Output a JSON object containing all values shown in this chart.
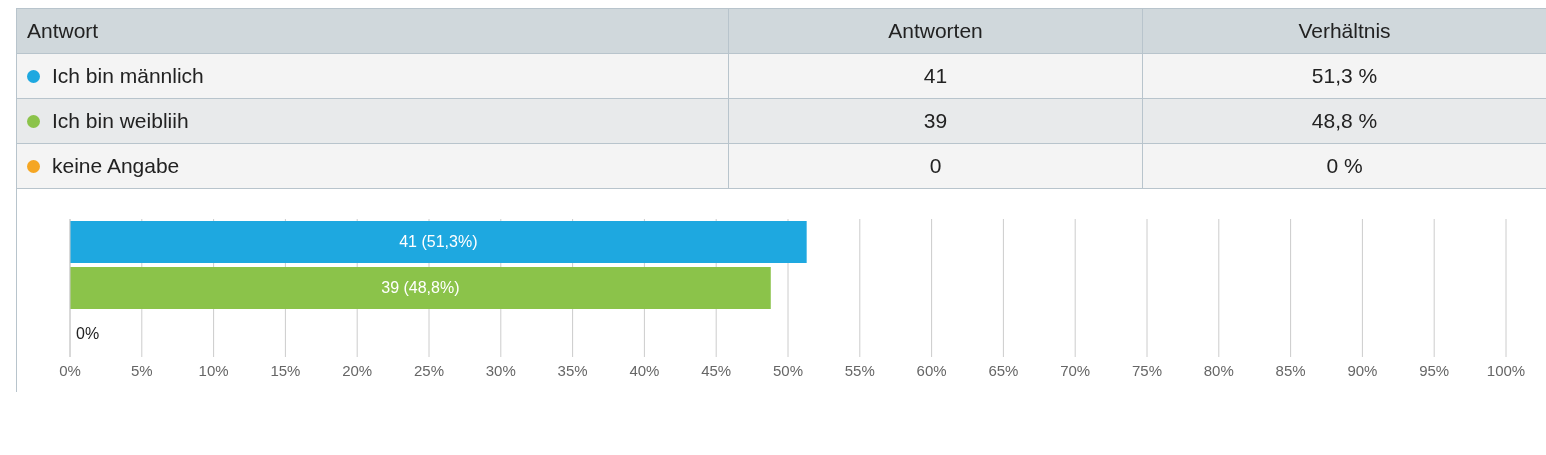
{
  "chart_data": {
    "type": "bar",
    "orientation": "horizontal",
    "categories": [
      null,
      null,
      null
    ],
    "values": [
      51.3,
      48.8,
      0
    ],
    "colors": [
      "#1ea8e0",
      "#8bc34a",
      "#f5a623"
    ],
    "value_labels": [
      "41 (51,3%)",
      "39 (48,8%)",
      "0%"
    ],
    "annotations": [
      "Antwort",
      "Antworten",
      "Verhältnis",
      "Ich bin männlich",
      "41",
      "51,3 %",
      "Ich bin weibliih",
      "39",
      "48,8 %",
      "keine Angabe",
      "0",
      "0 %"
    ],
    "xlim": [
      0,
      100
    ],
    "xticks": [
      {
        "value": 0,
        "label": "0%"
      },
      {
        "value": 5,
        "label": "5%"
      },
      {
        "value": 10,
        "label": "10%"
      },
      {
        "value": 15,
        "label": "15%"
      },
      {
        "value": 20,
        "label": "20%"
      },
      {
        "value": 25,
        "label": "25%"
      },
      {
        "value": 30,
        "label": "30%"
      },
      {
        "value": 35,
        "label": "35%"
      },
      {
        "value": 40,
        "label": "40%"
      },
      {
        "value": 45,
        "label": "45%"
      },
      {
        "value": 50,
        "label": "50%"
      },
      {
        "value": 55,
        "label": "55%"
      },
      {
        "value": 60,
        "label": "60%"
      },
      {
        "value": 65,
        "label": "65%"
      },
      {
        "value": 70,
        "label": "70%"
      },
      {
        "value": 75,
        "label": "75%"
      },
      {
        "value": 80,
        "label": "80%"
      },
      {
        "value": 85,
        "label": "85%"
      },
      {
        "value": 90,
        "label": "90%"
      },
      {
        "value": 95,
        "label": "95%"
      },
      {
        "value": 100,
        "label": "100%"
      }
    ],
    "grid": "x",
    "tick_labels": "x"
  }
}
